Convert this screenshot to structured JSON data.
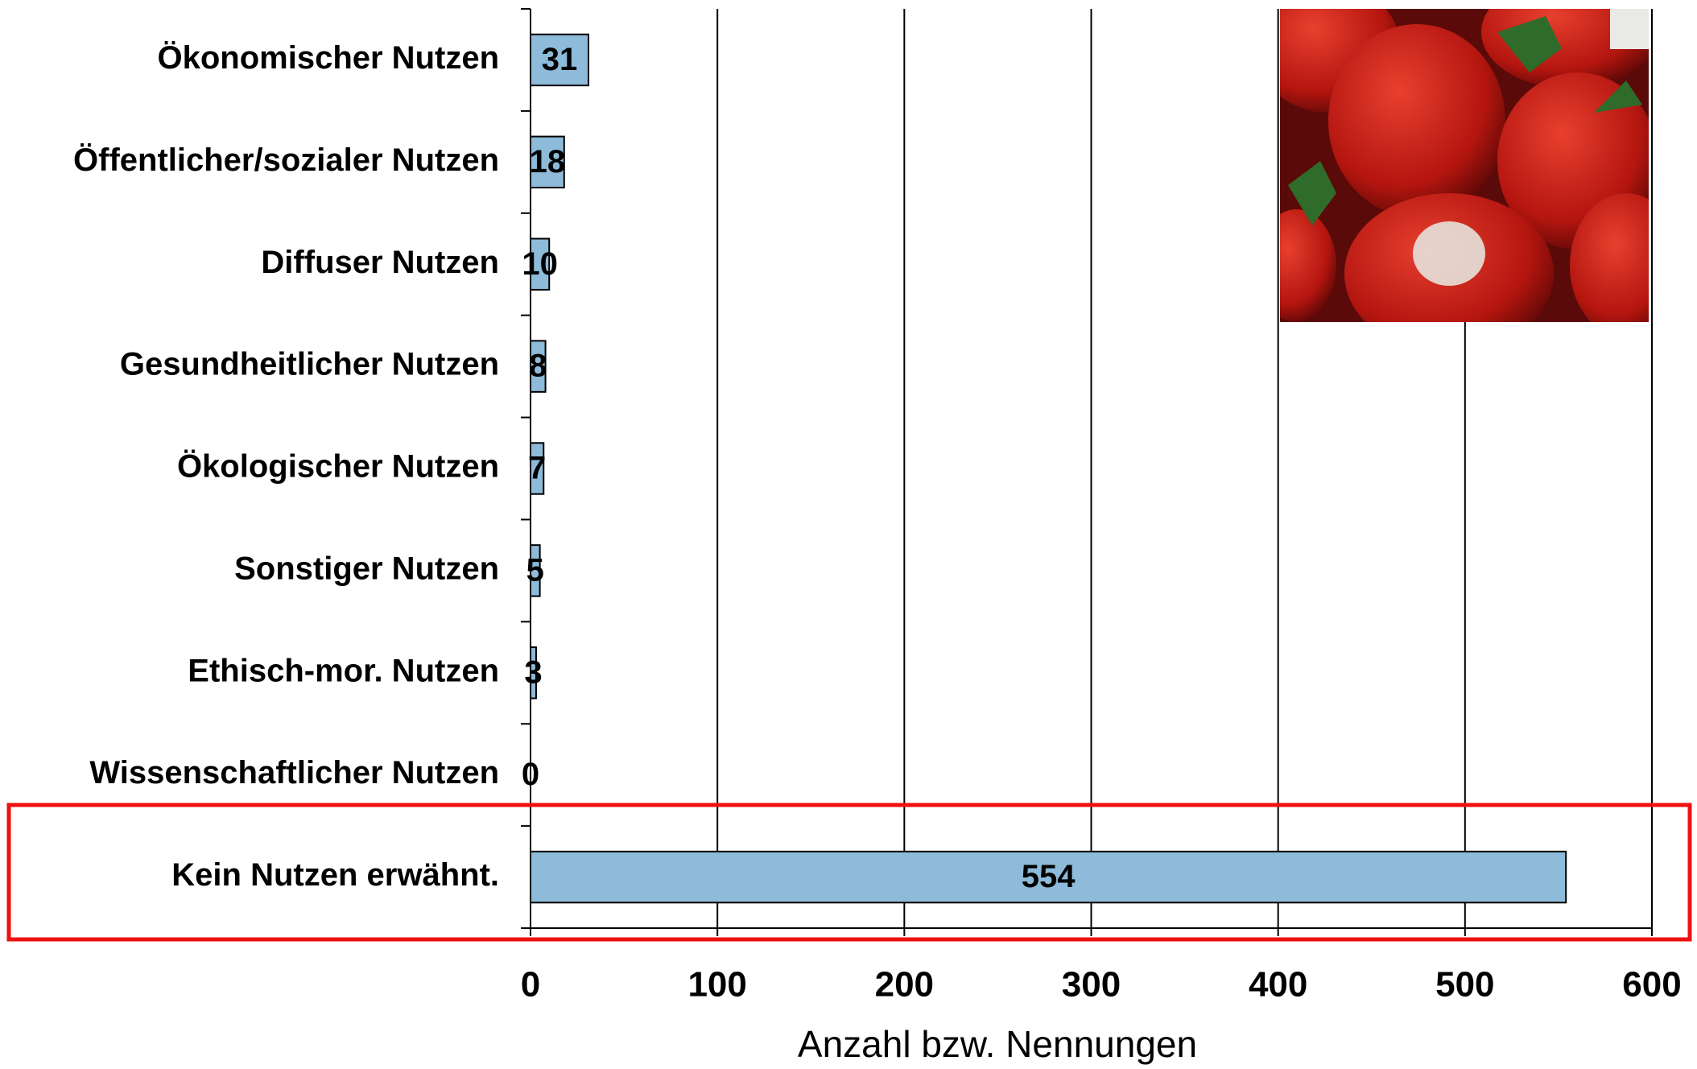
{
  "chart_data": {
    "type": "bar",
    "orientation": "horizontal",
    "categories": [
      "Ökonomischer Nutzen",
      "Öffentlicher/sozialer Nutzen",
      "Diffuser Nutzen",
      "Gesundheitlicher Nutzen",
      "Ökologischer Nutzen",
      "Sonstiger Nutzen",
      "Ethisch-mor. Nutzen",
      "Wissenschaftlicher Nutzen",
      "Kein Nutzen erwähnt."
    ],
    "values": [
      31,
      18,
      10,
      8,
      7,
      5,
      3,
      0,
      554
    ],
    "color": "#8dbbd9",
    "x_label": "Anzahl bzw. Nennungen",
    "xlim": [
      0,
      600
    ],
    "xticks": [
      0,
      100,
      200,
      300,
      400,
      500,
      600
    ],
    "grid": true
  }
}
